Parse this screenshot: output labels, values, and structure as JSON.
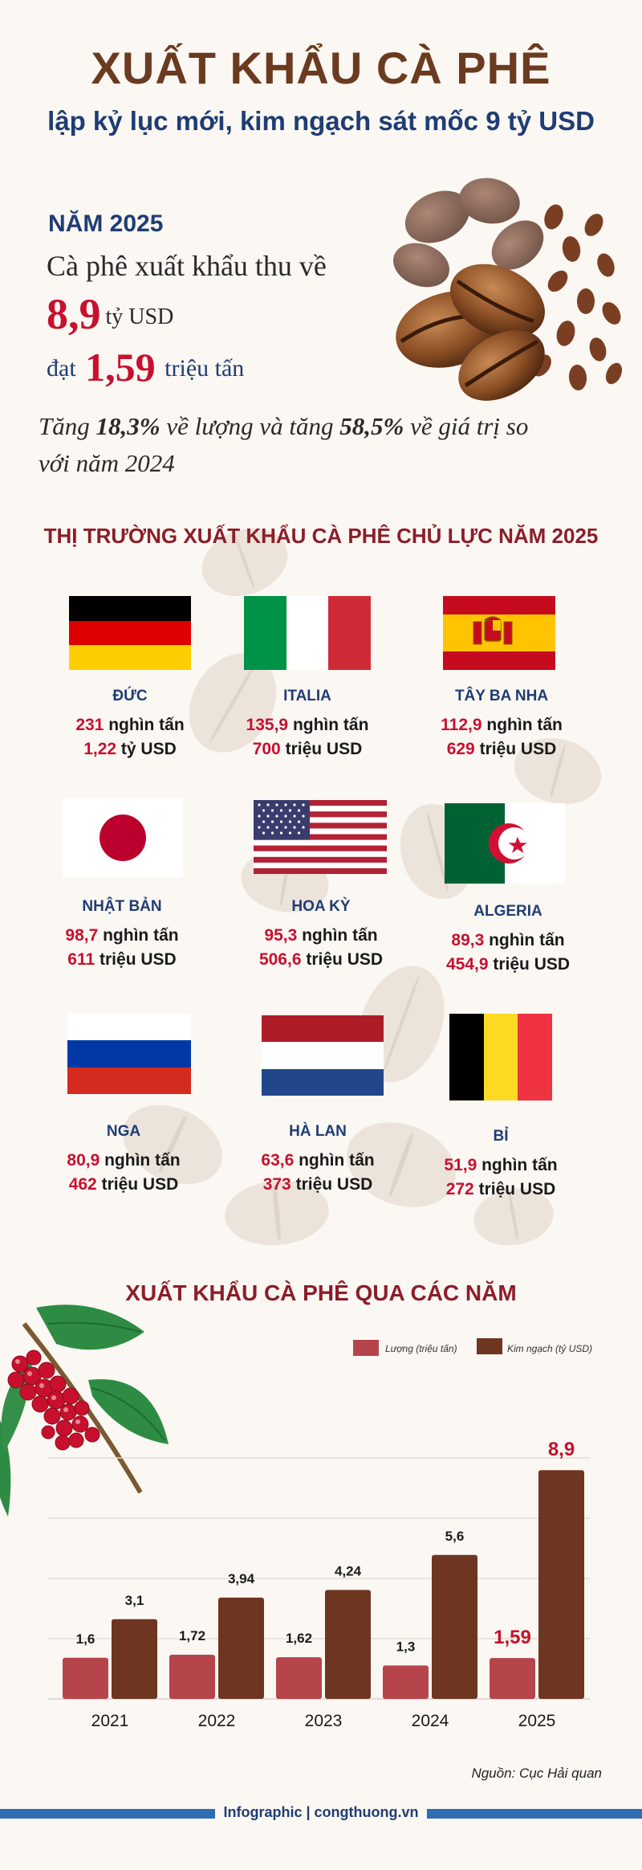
{
  "header": {
    "title": "XUẤT KHẨU CÀ PHÊ",
    "subtitle": "lập kỷ lục mới, kim ngạch sát mốc 9 tỷ USD"
  },
  "summary": {
    "year_label": "NĂM 2025",
    "line1": "Cà phê xuất khẩu thu về",
    "value_big": "8,9",
    "value_unit": "tỷ USD",
    "volume_prefix": "đạt",
    "volume_big": "1,59",
    "volume_unit": "triệu tấn",
    "growth_text_1": "Tăng ",
    "growth_volume": "18,3%",
    "growth_text_2": " về lượng và tăng ",
    "growth_value": "58,5%",
    "growth_text_3": " về giá trị so với năm 2024"
  },
  "markets_title": "THỊ TRƯỜNG XUẤT KHẨU CÀ PHÊ CHỦ LỰC NĂM 2025",
  "markets": [
    {
      "name": "ĐỨC",
      "volume": "231",
      "volume_unit": "nghìn tấn",
      "value": "1,22",
      "value_unit": "tỷ USD",
      "flag": "germany-flag"
    },
    {
      "name": "ITALIA",
      "volume": "135,9",
      "volume_unit": "nghìn tấn",
      "value": "700",
      "value_unit": "triệu USD",
      "flag": "italy-flag"
    },
    {
      "name": "TÂY BA NHA",
      "volume": "112,9",
      "volume_unit": "nghìn tấn",
      "value": "629",
      "value_unit": "triệu USD",
      "flag": "spain-flag"
    },
    {
      "name": "NHẬT BẢN",
      "volume": "98,7",
      "volume_unit": "nghìn tấn",
      "value": "611",
      "value_unit": "triệu USD",
      "flag": "japan-flag"
    },
    {
      "name": "HOA KỲ",
      "volume": "95,3",
      "volume_unit": "nghìn tấn",
      "value": "506,6",
      "value_unit": "triệu USD",
      "flag": "usa-flag"
    },
    {
      "name": "ALGERIA",
      "volume": "89,3",
      "volume_unit": "nghìn tấn",
      "value": "454,9",
      "value_unit": "triệu USD",
      "flag": "algeria-flag"
    },
    {
      "name": "NGA",
      "volume": "80,9",
      "volume_unit": "nghìn tấn",
      "value": "462",
      "value_unit": "triệu USD",
      "flag": "russia-flag"
    },
    {
      "name": "HÀ LAN",
      "volume": "63,6",
      "volume_unit": "nghìn tấn",
      "value": "373",
      "value_unit": "triệu USD",
      "flag": "netherlands-flag"
    },
    {
      "name": "BỈ",
      "volume": "51,9",
      "volume_unit": "nghìn tấn",
      "value": "272",
      "value_unit": "triệu USD",
      "flag": "belgium-flag"
    }
  ],
  "colors": {
    "title_brown": "#6b3a1f",
    "navy": "#1f3d73",
    "red": "#c8102e",
    "volume_bar": "#b5454b",
    "value_bar": "#6e3520"
  },
  "chart_data": {
    "type": "bar",
    "title": "XUẤT KHẨU CÀ PHÊ QUA CÁC NĂM",
    "categories": [
      "2021",
      "2022",
      "2023",
      "2024",
      "2025"
    ],
    "series": [
      {
        "name": "Lượng (triệu tấn)",
        "values": [
          1.6,
          1.72,
          1.62,
          1.3,
          1.59
        ],
        "labels": [
          "1,6",
          "1,72",
          "1,62",
          "1,3",
          "1,59"
        ],
        "color": "#b5454b"
      },
      {
        "name": "Kim ngạch (tỷ USD)",
        "values": [
          3.1,
          3.94,
          4.24,
          5.6,
          8.9
        ],
        "labels": [
          "3,1",
          "3,94",
          "4,24",
          "5,6",
          "8,9"
        ],
        "color": "#6e3520"
      }
    ],
    "xlabel": "",
    "ylabel": "",
    "ylim": [
      0,
      10
    ],
    "grid": true,
    "legend": "top-right"
  },
  "source": "Nguồn: Cục Hải quan",
  "footer": "Infographic | congthuong.vn"
}
